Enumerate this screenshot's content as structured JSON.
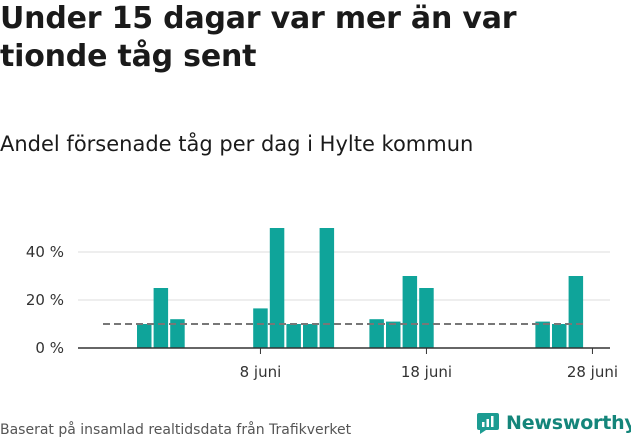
{
  "title": "Under 15 dagar var mer än var tionde tåg sent",
  "subtitle": "Andel försenade tåg per dag i Hylte kommun",
  "footer": {
    "source": "Baserat på insamlad realtidsdata från Trafikverket",
    "brand": "Newsworthy"
  },
  "colors": {
    "bar": "#0fa49a",
    "reference_line": "#777777",
    "grid": "#dddddd",
    "axis": "#333333",
    "brand": "#14857a"
  },
  "chart_data": {
    "type": "bar",
    "x_unit": "day of month (juni)",
    "x": [
      1,
      2,
      3,
      4,
      5,
      6,
      7,
      8,
      9,
      10,
      11,
      12,
      13,
      14,
      15,
      16,
      17,
      18,
      19,
      20,
      21,
      22,
      23,
      24,
      25,
      26,
      27,
      28,
      29,
      30
    ],
    "values": [
      10,
      25,
      12,
      0,
      0,
      0,
      0,
      16.5,
      50,
      10,
      10,
      50,
      0,
      0,
      12,
      11,
      30,
      25,
      0,
      0,
      0,
      0,
      0,
      0,
      11,
      10,
      30,
      0,
      0,
      0
    ],
    "ylim": [
      0,
      50
    ],
    "yticks": [
      0,
      20,
      40
    ],
    "ytick_labels": [
      "0 %",
      "20 %",
      "40 %"
    ],
    "xticks": [
      8,
      18,
      28
    ],
    "xtick_labels": [
      "8 juni",
      "18 juni",
      "28 juni"
    ],
    "reference_line": 10,
    "grid": true,
    "legend": "none"
  }
}
